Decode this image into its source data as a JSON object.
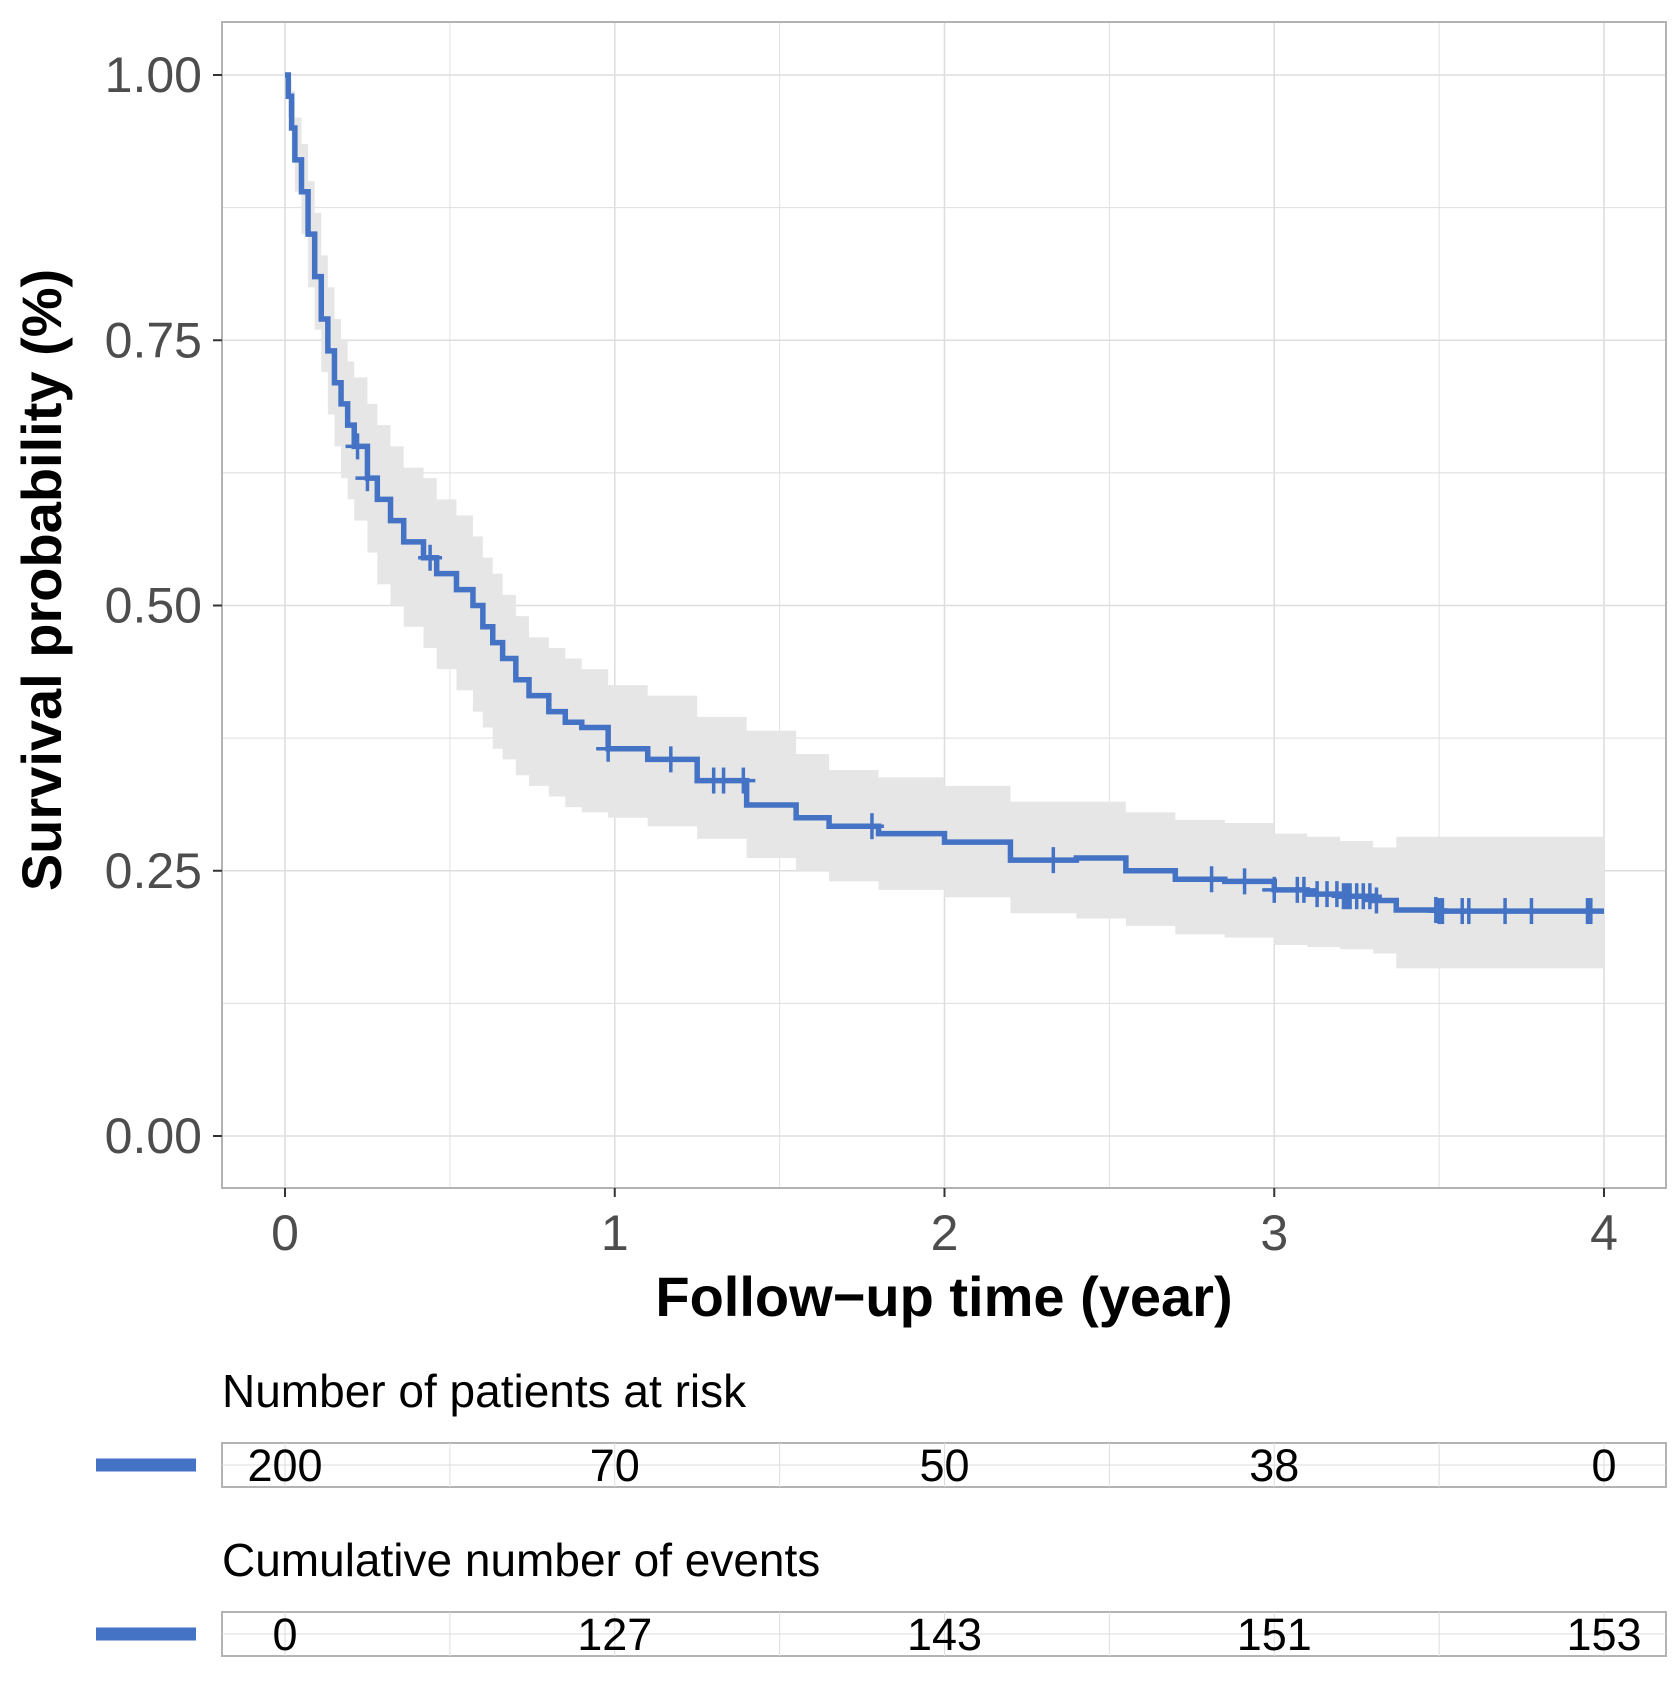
{
  "chart_data": {
    "type": "line",
    "subtype": "kaplan-meier",
    "xlabel": "Follow−up time (year)",
    "ylabel": "Survival probability (%)",
    "xlim": [
      0,
      4
    ],
    "ylim": [
      0,
      1
    ],
    "x_ticks": [
      "0",
      "1",
      "2",
      "3",
      "4"
    ],
    "y_ticks": [
      "0.00",
      "0.25",
      "0.50",
      "0.75",
      "1.00"
    ],
    "grid": true,
    "colors": {
      "line": "#4472c4",
      "ci_band": "#e6e6e6",
      "grid": "#dedede",
      "border": "#b3b3b3"
    },
    "series": [
      {
        "x": [
          0.0,
          0.01,
          0.02,
          0.03,
          0.05,
          0.07,
          0.09,
          0.11,
          0.13,
          0.15,
          0.17,
          0.19,
          0.21,
          0.25,
          0.28,
          0.32,
          0.36,
          0.42,
          0.46,
          0.52,
          0.57,
          0.6,
          0.63,
          0.66,
          0.7,
          0.74,
          0.8,
          0.85,
          0.9,
          0.98,
          1.1,
          1.25,
          1.4,
          1.55,
          1.65,
          1.8,
          2.0,
          2.2,
          2.4,
          2.55,
          2.7,
          2.85,
          3.0,
          3.1,
          3.2,
          3.3,
          3.37,
          3.5,
          3.7,
          4.0
        ],
        "y": [
          1.0,
          0.98,
          0.95,
          0.92,
          0.89,
          0.85,
          0.81,
          0.77,
          0.74,
          0.71,
          0.69,
          0.67,
          0.65,
          0.62,
          0.6,
          0.58,
          0.56,
          0.545,
          0.53,
          0.515,
          0.5,
          0.48,
          0.465,
          0.45,
          0.43,
          0.415,
          0.4,
          0.39,
          0.385,
          0.365,
          0.355,
          0.335,
          0.312,
          0.3,
          0.292,
          0.285,
          0.277,
          0.26,
          0.262,
          0.25,
          0.242,
          0.24,
          0.232,
          0.228,
          0.226,
          0.222,
          0.213,
          0.212,
          0.212,
          0.212
        ],
        "ci_low": [
          1.0,
          0.96,
          0.92,
          0.89,
          0.85,
          0.8,
          0.76,
          0.72,
          0.68,
          0.65,
          0.62,
          0.6,
          0.58,
          0.55,
          0.52,
          0.5,
          0.48,
          0.46,
          0.44,
          0.42,
          0.4,
          0.385,
          0.365,
          0.355,
          0.34,
          0.33,
          0.32,
          0.31,
          0.305,
          0.3,
          0.292,
          0.28,
          0.262,
          0.25,
          0.24,
          0.232,
          0.225,
          0.21,
          0.205,
          0.198,
          0.19,
          0.187,
          0.18,
          0.178,
          0.176,
          0.172,
          0.158,
          0.158,
          0.158,
          0.158
        ],
        "ci_high": [
          1.0,
          0.995,
          0.985,
          0.96,
          0.935,
          0.9,
          0.87,
          0.83,
          0.8,
          0.77,
          0.75,
          0.73,
          0.715,
          0.69,
          0.67,
          0.65,
          0.63,
          0.62,
          0.6,
          0.585,
          0.565,
          0.545,
          0.53,
          0.51,
          0.49,
          0.47,
          0.46,
          0.45,
          0.44,
          0.425,
          0.415,
          0.395,
          0.382,
          0.36,
          0.345,
          0.338,
          0.33,
          0.315,
          0.315,
          0.305,
          0.298,
          0.295,
          0.285,
          0.282,
          0.278,
          0.272,
          0.282,
          0.282,
          0.282,
          0.282
        ]
      }
    ],
    "censor_times": [
      0.22,
      0.25,
      0.44,
      0.98,
      1.17,
      1.3,
      1.33,
      1.39,
      1.78,
      2.33,
      2.81,
      2.91,
      3.0,
      3.07,
      3.09,
      3.13,
      3.16,
      3.19,
      3.21,
      3.22,
      3.23,
      3.25,
      3.27,
      3.29,
      3.31,
      3.49,
      3.5,
      3.51,
      3.57,
      3.59,
      3.7,
      3.78,
      3.95,
      3.96
    ],
    "risk_table": {
      "title": "Number of patients at risk",
      "times": [
        0,
        1,
        2,
        3,
        4
      ],
      "values": [
        "200",
        "70",
        "50",
        "38",
        "0"
      ]
    },
    "events_table": {
      "title": "Cumulative number of events",
      "times": [
        0,
        1,
        2,
        3,
        4
      ],
      "values": [
        "0",
        "127",
        "143",
        "151",
        "153"
      ]
    }
  }
}
